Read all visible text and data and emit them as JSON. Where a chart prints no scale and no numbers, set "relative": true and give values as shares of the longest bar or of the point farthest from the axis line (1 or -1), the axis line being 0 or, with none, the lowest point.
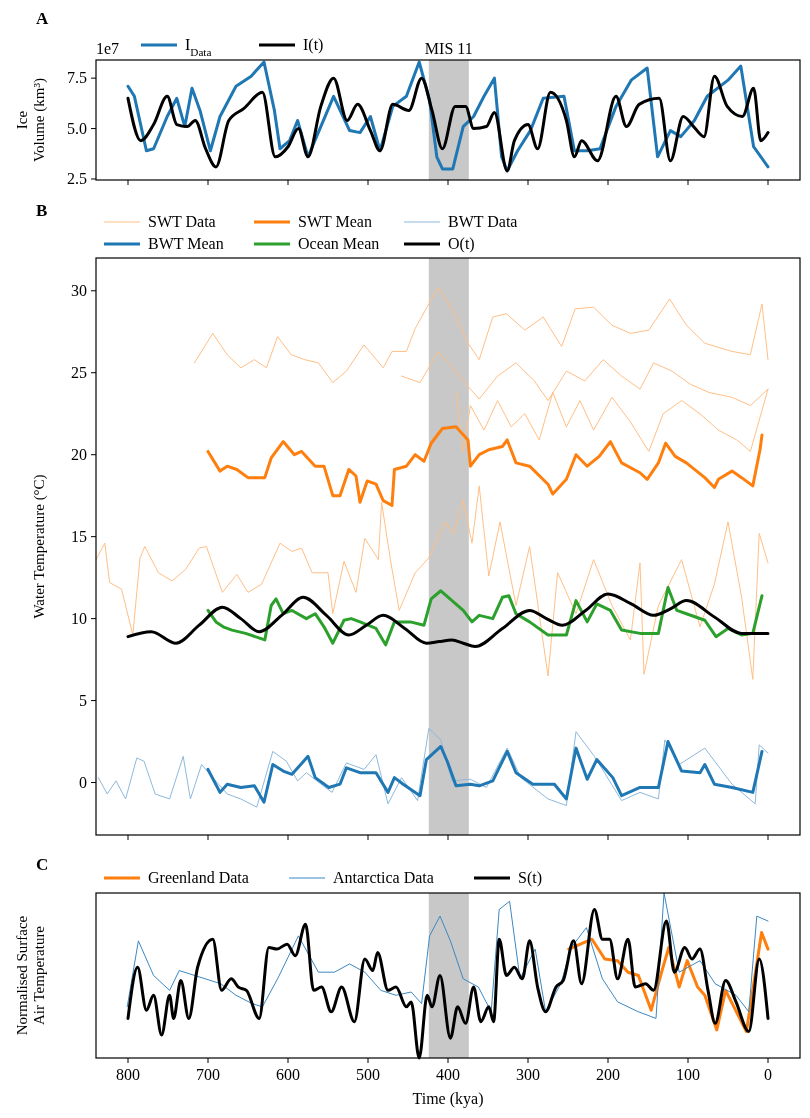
{
  "chart_data": [
    {
      "type": "line",
      "title": "A",
      "ylabel": "Ice\nVolume (km³)",
      "annotations": [
        "1e7"
      ],
      "xlim": [
        840,
        -40
      ],
      "xticks": [
        800,
        700,
        600,
        500,
        400,
        300,
        200,
        100,
        0
      ],
      "ylim": [
        2.45,
        8.4
      ],
      "yticks": [
        2.5,
        {
          "value": 5,
          "label": "5.0"
        },
        7.5
      ],
      "tick_labels": "y",
      "legend": "top left",
      "bands": [
        {
          "axis": "x",
          "from": 424,
          "to": 374,
          "label": "MIS 11",
          "color": "#c8c8c8"
        }
      ],
      "series": [
        {
          "name": "I$_{Data}$",
          "color": "#1f77b4",
          "x": [
            800,
            792,
            777,
            768,
            751,
            739,
            729,
            720,
            710,
            697,
            685,
            665,
            646,
            630,
            617,
            610,
            598,
            588,
            575,
            559,
            543,
            523,
            510,
            497,
            485,
            469,
            452,
            436,
            423,
            414,
            407,
            394,
            381,
            368,
            355,
            342,
            333,
            326,
            313,
            297,
            281,
            255,
            242,
            226,
            210,
            190,
            171,
            151,
            138,
            122,
            109,
            92,
            76,
            50,
            34,
            18,
            0
          ],
          "values": [
            7.1,
            6.6,
            3.9,
            4.0,
            5.6,
            6.5,
            5.1,
            7.0,
            5.9,
            3.9,
            5.6,
            7.1,
            7.6,
            8.3,
            5.9,
            4.0,
            4.4,
            5.4,
            3.6,
            5.1,
            6.6,
            4.9,
            4.8,
            5.6,
            3.9,
            6.1,
            6.6,
            8.3,
            6.4,
            3.6,
            3.0,
            3.0,
            5.1,
            5.6,
            6.6,
            7.5,
            3.6,
            2.9,
            3.9,
            4.9,
            6.5,
            6.6,
            3.9,
            3.9,
            4.0,
            6.1,
            7.4,
            8.0,
            3.6,
            4.9,
            4.6,
            5.4,
            6.6,
            7.4,
            8.1,
            4.1,
            3.1
          ]
        },
        {
          "name": "I(t)",
          "color": "#000000",
          "x": [
            800,
            784,
            768,
            751,
            739,
            726,
            716,
            703,
            690,
            674,
            655,
            632,
            616,
            600,
            587,
            575,
            559,
            543,
            526,
            513,
            497,
            485,
            469,
            449,
            433,
            420,
            407,
            391,
            378,
            368,
            352,
            342,
            326,
            317,
            300,
            288,
            272,
            252,
            242,
            233,
            213,
            190,
            177,
            161,
            136,
            122,
            106,
            93,
            80,
            67,
            51,
            32,
            18,
            9,
            0
          ],
          "values": [
            6.5,
            4.4,
            5.2,
            6.6,
            5.2,
            5.1,
            5.4,
            4.0,
            3.1,
            5.4,
            6.0,
            6.8,
            3.6,
            4.1,
            5.0,
            3.6,
            6.1,
            7.5,
            5.4,
            6.2,
            4.9,
            3.9,
            6.2,
            5.9,
            7.5,
            5.9,
            4.0,
            6.1,
            6.1,
            5.0,
            5.1,
            5.8,
            2.9,
            4.4,
            5.2,
            4.0,
            6.8,
            5.4,
            3.6,
            4.4,
            3.4,
            6.6,
            5.1,
            6.2,
            6.5,
            3.4,
            5.6,
            5.1,
            4.6,
            7.6,
            6.1,
            5.6,
            7.0,
            4.4,
            4.8
          ]
        }
      ]
    },
    {
      "type": "line",
      "title": "B",
      "ylabel": "Water Temperature (°C)",
      "xlim": [
        840,
        -40
      ],
      "xticks": [
        800,
        700,
        600,
        500,
        400,
        300,
        200,
        100,
        0
      ],
      "ylim": [
        -3.2,
        32
      ],
      "yticks": [
        0,
        5,
        10,
        15,
        20,
        25,
        30
      ],
      "tick_labels": "y",
      "legend": "top left",
      "bands": [
        {
          "axis": "x",
          "from": 424,
          "to": 374,
          "color": "#c8c8c8"
        }
      ],
      "series": [
        {
          "name": "SWT Data",
          "color": "#ffbf86",
          "x": [
            717,
            694,
            676,
            659,
            642,
            627,
            613,
            596,
            579,
            562,
            544,
            527,
            505,
            481,
            470,
            452,
            441,
            424,
            412,
            395,
            375,
            361,
            344,
            327,
            304,
            281,
            258,
            241,
            218,
            195,
            172,
            149,
            123,
            102,
            79,
            45,
            22,
            7.5,
            0
          ],
          "values": [
            25.6,
            27.4,
            26.1,
            25.3,
            25.8,
            25.3,
            27.2,
            26.1,
            25.8,
            25.6,
            24.4,
            25.1,
            26.7,
            25.3,
            26.3,
            26.3,
            27.7,
            29.2,
            30.2,
            28.9,
            26.8,
            25.8,
            28.4,
            28.6,
            27.6,
            28.4,
            26.6,
            28.9,
            29.0,
            27.9,
            27.4,
            27.6,
            29.5,
            27.9,
            26.8,
            26.3,
            26.1,
            29.2,
            25.8
          ]
        },
        {
          "color": "#ffbf86",
          "x": [
            458,
            435,
            412,
            390,
            372,
            361,
            338,
            315,
            292,
            275,
            252,
            229,
            206,
            183,
            160,
            143,
            120,
            97,
            74,
            45,
            22,
            0
          ],
          "values": [
            24.8,
            24.4,
            26.3,
            25.1,
            24.0,
            23.4,
            24.8,
            25.6,
            24.5,
            23.3,
            25.1,
            24.5,
            25.8,
            24.8,
            24.0,
            25.6,
            25.1,
            24.3,
            23.8,
            23.5,
            23.0,
            24.0
          ]
        },
        {
          "color": "#ffbf86",
          "x": [
            390,
            381,
            372,
            355,
            338,
            321,
            304,
            286,
            269,
            252,
            235,
            218,
            195,
            172,
            149,
            131,
            108,
            85,
            62,
            39,
            22,
            0
          ],
          "values": [
            23.8,
            20.2,
            23.0,
            21.5,
            23.3,
            21.7,
            22.5,
            20.9,
            23.8,
            21.7,
            23.3,
            21.5,
            23.5,
            22.0,
            20.2,
            22.5,
            23.3,
            22.5,
            21.5,
            20.9,
            20.2,
            24.0
          ]
        },
        {
          "color": "#ffbf86",
          "x": [
            840,
            829,
            823,
            808,
            794,
            785,
            779,
            762,
            745,
            728,
            711,
            702,
            682,
            664,
            650,
            633,
            610,
            595,
            583,
            570,
            550,
            544,
            530,
            515,
            504,
            487,
            483,
            472,
            461,
            441,
            424,
            404,
            393,
            381,
            370,
            361,
            349,
            335,
            315,
            298,
            275,
            263,
            240,
            218,
            195,
            172,
            160,
            155,
            137,
            108,
            85,
            67,
            50,
            33,
            19,
            11,
            0
          ],
          "values": [
            13.6,
            14.6,
            12.2,
            11.8,
            9.0,
            13.7,
            14.4,
            12.8,
            12.3,
            13.0,
            14.3,
            14.4,
            11.6,
            12.7,
            11.6,
            12.1,
            14.6,
            14.1,
            14.3,
            12.8,
            12.8,
            10.3,
            13.5,
            11.6,
            14.9,
            13.6,
            17.1,
            13.6,
            10.5,
            12.8,
            13.7,
            15.9,
            15.2,
            17.2,
            14.6,
            18.1,
            12.6,
            15.9,
            10.8,
            14.4,
            6.5,
            12.8,
            10.3,
            13.6,
            10.8,
            8.7,
            13.4,
            6.6,
            10.8,
            13.6,
            9.5,
            12.1,
            15.9,
            11.3,
            6.3,
            15.2,
            13.4
          ]
        },
        {
          "name": "SWT Mean",
          "color": "#ff7f0e",
          "x": [
            700,
            685,
            676,
            664,
            650,
            629,
            621,
            606,
            592,
            583,
            566,
            555,
            544,
            535,
            524,
            515,
            510,
            501,
            490,
            481,
            470,
            467,
            452,
            441,
            430,
            421,
            407,
            390,
            375,
            372,
            361,
            349,
            332,
            326,
            315,
            298,
            275,
            269,
            252,
            240,
            226,
            211,
            197,
            183,
            160,
            151,
            137,
            128,
            116,
            102,
            79,
            67,
            62,
            45,
            33,
            19,
            10,
            7.5
          ],
          "values": [
            20.2,
            19.0,
            19.3,
            19.1,
            18.6,
            18.6,
            19.8,
            20.8,
            20.0,
            20.2,
            19.3,
            19.3,
            17.5,
            17.5,
            19.1,
            18.7,
            17.1,
            18.4,
            18.2,
            17.2,
            16.9,
            19.1,
            19.3,
            20.0,
            19.6,
            20.7,
            21.6,
            21.7,
            20.9,
            19.3,
            20.0,
            20.3,
            20.5,
            20.9,
            19.5,
            19.3,
            18.2,
            17.6,
            18.5,
            20.0,
            19.3,
            19.9,
            20.8,
            19.5,
            18.9,
            18.5,
            19.5,
            20.7,
            19.9,
            19.5,
            18.6,
            18.0,
            18.5,
            19.0,
            18.6,
            18.1,
            20.3,
            21.2
          ]
        },
        {
          "name": "BWT Data",
          "color": "#8db9dc",
          "x": [
            837,
            826,
            815,
            803,
            789,
            780,
            766,
            748,
            731,
            722,
            708,
            694,
            676,
            659,
            639,
            619,
            602,
            588,
            577,
            556,
            545,
            527,
            505,
            490,
            475,
            458,
            438,
            424,
            409,
            395,
            372,
            352,
            326,
            309,
            275,
            252,
            240,
            217,
            183,
            160,
            137,
            129,
            111,
            79,
            45,
            16,
            11,
            0
          ],
          "values": [
            0.3,
            -0.7,
            0.1,
            -1.0,
            1.5,
            1.3,
            -0.7,
            -1.0,
            1.6,
            -1.0,
            1.1,
            0.3,
            -0.7,
            -1.0,
            -1.5,
            1.9,
            1.3,
            0.1,
            0.6,
            -0.2,
            -0.6,
            1.2,
            0.8,
            1.7,
            -1.3,
            0.3,
            -1.1,
            3.3,
            2.6,
            0.1,
            0.2,
            -0.3,
            2.1,
            0.3,
            -1.0,
            -1.4,
            3.1,
            1.6,
            -1.1,
            -0.6,
            -1.0,
            2.6,
            1.1,
            2.1,
            -0.1,
            -1.3,
            2.3,
            1.8
          ]
        },
        {
          "name": "BWT Mean",
          "color": "#1f77b4",
          "x": [
            700,
            685,
            676,
            659,
            642,
            630,
            619,
            606,
            595,
            575,
            566,
            549,
            535,
            527,
            510,
            490,
            475,
            467,
            456,
            435,
            427,
            409,
            401,
            390,
            372,
            361,
            344,
            326,
            315,
            294,
            275,
            267,
            252,
            240,
            226,
            214,
            194,
            183,
            160,
            137,
            125,
            108,
            85,
            79,
            67,
            45,
            19,
            7.5
          ],
          "values": [
            0.8,
            -0.6,
            -0.1,
            -0.3,
            -0.2,
            -1.2,
            1.1,
            0.7,
            0.5,
            1.6,
            0.3,
            -0.3,
            -0.1,
            0.9,
            0.6,
            0.6,
            -0.6,
            0.3,
            -0.1,
            -0.8,
            1.4,
            2.2,
            1.3,
            -0.2,
            -0.1,
            -0.2,
            0.1,
            1.9,
            0.6,
            -0.1,
            -0.1,
            -0.1,
            -1.0,
            2.1,
            0.2,
            1.4,
            0.3,
            -0.8,
            -0.3,
            -0.3,
            2.5,
            0.7,
            0.6,
            1.1,
            -0.1,
            -0.3,
            -0.6,
            1.9
          ]
        },
        {
          "name": "Ocean Mean",
          "color": "#2ca02c",
          "x": [
            700,
            690,
            681,
            670,
            653,
            629,
            621,
            615,
            606,
            595,
            577,
            566,
            555,
            544,
            530,
            521,
            510,
            490,
            478,
            467,
            447,
            430,
            421,
            409,
            395,
            381,
            370,
            361,
            344,
            332,
            324,
            315,
            298,
            275,
            252,
            240,
            226,
            214,
            197,
            183,
            160,
            137,
            125,
            114,
            102,
            79,
            65,
            50,
            33,
            19,
            7.5
          ],
          "values": [
            10.5,
            9.8,
            9.5,
            9.3,
            9.1,
            8.7,
            10.8,
            11.2,
            10.3,
            10.5,
            10.0,
            10.3,
            9.5,
            8.5,
            9.9,
            10.0,
            9.8,
            9.4,
            8.4,
            9.8,
            9.8,
            9.6,
            11.2,
            11.7,
            11.1,
            10.5,
            9.8,
            10.2,
            10.0,
            11.3,
            11.4,
            10.3,
            9.8,
            9.0,
            9.0,
            11.1,
            9.8,
            10.9,
            10.5,
            9.3,
            9.1,
            9.1,
            11.9,
            10.5,
            10.3,
            9.9,
            8.9,
            9.4,
            9.0,
            9.1,
            11.4
          ]
        },
        {
          "name": "O(t)",
          "color": "#000000",
          "x": [
            800,
            771,
            740,
            711,
            682,
            659,
            636,
            608,
            581,
            552,
            524,
            502,
            481,
            454,
            427,
            411,
            395,
            381,
            366,
            332,
            298,
            277,
            257,
            228,
            200,
            171,
            143,
            122,
            102,
            67,
            33,
            15,
            0
          ],
          "values": [
            8.9,
            9.2,
            8.5,
            9.6,
            10.7,
            10.0,
            9.2,
            10.2,
            11.3,
            10.2,
            9.0,
            9.6,
            10.2,
            9.4,
            8.5,
            8.6,
            8.7,
            8.5,
            8.3,
            9.4,
            10.5,
            10.0,
            9.6,
            10.5,
            11.5,
            10.9,
            10.2,
            10.6,
            11.1,
            10.1,
            9.1,
            9.1,
            9.1
          ]
        }
      ]
    },
    {
      "type": "line",
      "title": "C",
      "ylabel": "Normalised Surface\nAir Temperature",
      "xlabel": "Time (kya)",
      "relative": true,
      "xlim": [
        840,
        -40
      ],
      "xticks": [
        800,
        700,
        600,
        500,
        400,
        300,
        200,
        100,
        0
      ],
      "tick_labels": "x",
      "legend": "top left",
      "bands": [
        {
          "axis": "x",
          "from": 424,
          "to": 374,
          "color": "#c8c8c8"
        }
      ],
      "series": [
        {
          "name": "Greenland Data",
          "color": "#ff7f0e",
          "x": [
            249,
            220,
            204,
            188,
            175,
            162,
            146,
            133,
            124,
            111,
            101,
            88,
            79,
            64,
            53,
            27,
            8,
            0
          ],
          "values": [
            0.66,
            0.72,
            0.6,
            0.59,
            0.52,
            0.5,
            0.29,
            0.52,
            0.67,
            0.43,
            0.59,
            0.43,
            0.38,
            0.17,
            0.41,
            0.16,
            0.76,
            0.66
          ]
        },
        {
          "name": "Antarctica Data",
          "color": "#3d88c2",
          "x": [
            801,
            787,
            768,
            748,
            736,
            684,
            665,
            645,
            632,
            613,
            587,
            562,
            542,
            523,
            504,
            484,
            465,
            446,
            433,
            423,
            410,
            397,
            381,
            362,
            346,
            336,
            323,
            310,
            291,
            278,
            259,
            246,
            227,
            207,
            188,
            162,
            140,
            130,
            111,
            85,
            66,
            40,
            24,
            14,
            0
          ],
          "values": [
            0.31,
            0.71,
            0.5,
            0.41,
            0.53,
            0.45,
            0.38,
            0.33,
            0.31,
            0.48,
            0.74,
            0.52,
            0.52,
            0.57,
            0.52,
            0.41,
            0.38,
            0.4,
            0.33,
            0.74,
            0.86,
            0.71,
            0.48,
            0.43,
            0.28,
            0.9,
            0.95,
            0.48,
            0.66,
            0.28,
            0.45,
            0.67,
            0.79,
            0.48,
            0.34,
            0.28,
            0.24,
            1.0,
            0.52,
            0.59,
            0.45,
            0.38,
            0.28,
            0.86,
            0.83
          ]
        },
        {
          "name": "S(t)",
          "color": "#000000",
          "x": [
            800,
            788,
            777,
            768,
            758,
            748,
            743,
            734,
            724,
            713,
            694,
            683,
            671,
            662,
            652,
            636,
            624,
            614,
            601,
            591,
            578,
            568,
            558,
            546,
            533,
            517,
            504,
            494,
            488,
            475,
            465,
            452,
            446,
            436,
            426,
            420,
            410,
            397,
            388,
            378,
            368,
            359,
            349,
            343,
            336,
            327,
            317,
            307,
            298,
            288,
            278,
            265,
            256,
            243,
            233,
            217,
            207,
            198,
            188,
            175,
            166,
            153,
            143,
            127,
            117,
            104,
            95,
            85,
            75,
            66,
            53,
            40,
            24,
            11,
            0
          ],
          "values": [
            0.24,
            0.55,
            0.29,
            0.38,
            0.14,
            0.38,
            0.24,
            0.47,
            0.24,
            0.55,
            0.72,
            0.41,
            0.48,
            0.43,
            0.41,
            0.24,
            0.67,
            0.66,
            0.69,
            0.62,
            0.81,
            0.41,
            0.43,
            0.28,
            0.43,
            0.22,
            0.6,
            0.53,
            0.64,
            0.41,
            0.43,
            0.31,
            0.34,
            0.0,
            0.38,
            0.31,
            0.5,
            0.12,
            0.31,
            0.21,
            0.43,
            0.22,
            0.31,
            0.22,
            0.72,
            0.5,
            0.55,
            0.48,
            0.71,
            0.43,
            0.28,
            0.43,
            0.47,
            0.71,
            0.45,
            0.9,
            0.72,
            0.72,
            0.48,
            0.72,
            0.43,
            0.45,
            0.41,
            0.83,
            0.52,
            0.67,
            0.6,
            0.66,
            0.41,
            0.21,
            0.47,
            0.34,
            0.16,
            0.6,
            0.24
          ]
        }
      ]
    }
  ]
}
